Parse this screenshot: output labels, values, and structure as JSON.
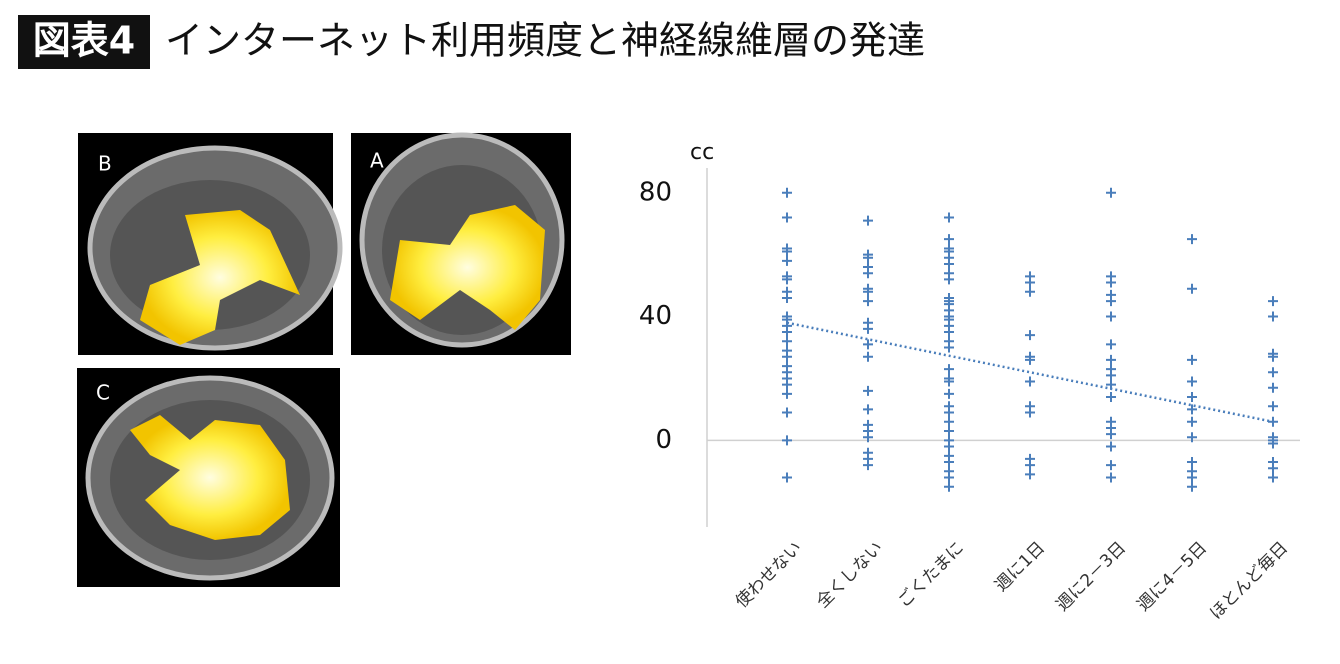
{
  "header": {
    "badge": "図表4",
    "title": "インターネット利用頻度と神経線維層の発達"
  },
  "panels": [
    "B",
    "A",
    "C"
  ],
  "chart_data": {
    "type": "scatter",
    "y_label": "cc",
    "categories": [
      "使わせない",
      "全くしない",
      "ごくたまに",
      "週に1日",
      "週に2－3日",
      "週に4－5日",
      "ほとんど毎日"
    ],
    "points": [
      [
        80,
        72,
        62,
        61,
        58,
        53,
        52,
        48,
        46,
        40,
        39,
        37,
        35,
        32,
        29,
        27,
        24,
        22,
        20,
        18,
        15,
        9,
        0,
        -12
      ],
      [
        71,
        60,
        59,
        56,
        54,
        49,
        48,
        45,
        38,
        36,
        31,
        27,
        16,
        10,
        5,
        3,
        1,
        -4,
        -6,
        -8
      ],
      [
        72,
        65,
        62,
        61,
        59,
        57,
        54,
        52,
        46,
        45,
        44,
        42,
        40,
        39,
        37,
        35,
        32,
        30,
        23,
        20,
        19,
        15,
        11,
        9,
        6,
        3,
        0,
        -2,
        -5,
        -7,
        -10,
        -12,
        -15
      ],
      [
        53,
        51,
        48,
        34,
        27,
        26,
        19,
        11,
        9,
        -6,
        -8,
        -11
      ],
      [
        80,
        53,
        51,
        47,
        45,
        40,
        31,
        26,
        23,
        21,
        18,
        14,
        6,
        4,
        2,
        -2,
        -8,
        -12
      ],
      [
        65,
        49,
        26,
        19,
        14,
        10,
        6,
        1,
        -7,
        -10,
        -12,
        -15
      ],
      [
        45,
        40,
        28,
        27,
        22,
        17,
        11,
        6,
        1,
        0,
        -1,
        -7,
        -9,
        -12
      ]
    ],
    "color": "#4a7ebb",
    "trendline": [
      38,
      6
    ],
    "ylim": [
      -28,
      88
    ],
    "yticks": [
      0,
      40,
      80
    ]
  }
}
